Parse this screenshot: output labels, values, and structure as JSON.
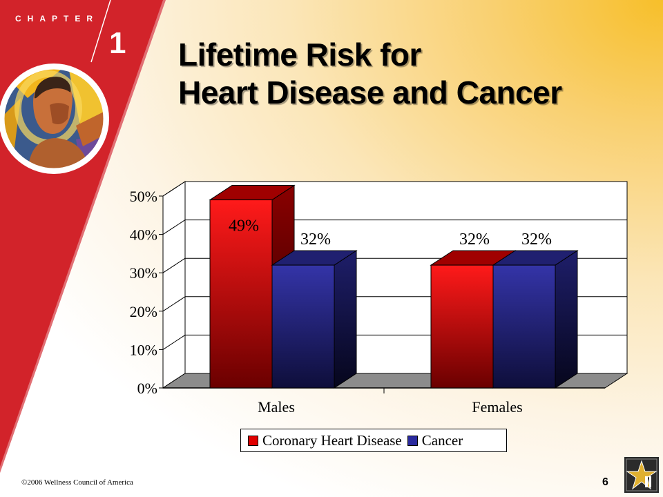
{
  "header": {
    "chapter_label": "CHAPTER",
    "chapter_number": "1"
  },
  "title": {
    "line1": "Lifetime Risk for",
    "line2": "Heart Disease and Cancer"
  },
  "colors": {
    "band_red": "#d2232a",
    "series_red": "#e00000",
    "series_blue": "#2a2a9e"
  },
  "chart_data": {
    "type": "bar",
    "three_d": true,
    "categories": [
      "Males",
      "Females"
    ],
    "series": [
      {
        "name": "Coronary Heart Disease",
        "values": [
          49,
          32
        ],
        "labels": [
          "49%",
          "32%"
        ],
        "color": "#e00000"
      },
      {
        "name": "Cancer",
        "values": [
          32,
          32
        ],
        "labels": [
          "32%",
          "32%"
        ],
        "color": "#2a2a9e"
      }
    ],
    "y_ticks": [
      "0%",
      "10%",
      "20%",
      "30%",
      "40%",
      "50%"
    ],
    "ylim": [
      0,
      50
    ],
    "grid": true,
    "legend_position": "bottom"
  },
  "footer": {
    "copyright": "©2006 Wellness Council of America",
    "page_number": "6"
  }
}
